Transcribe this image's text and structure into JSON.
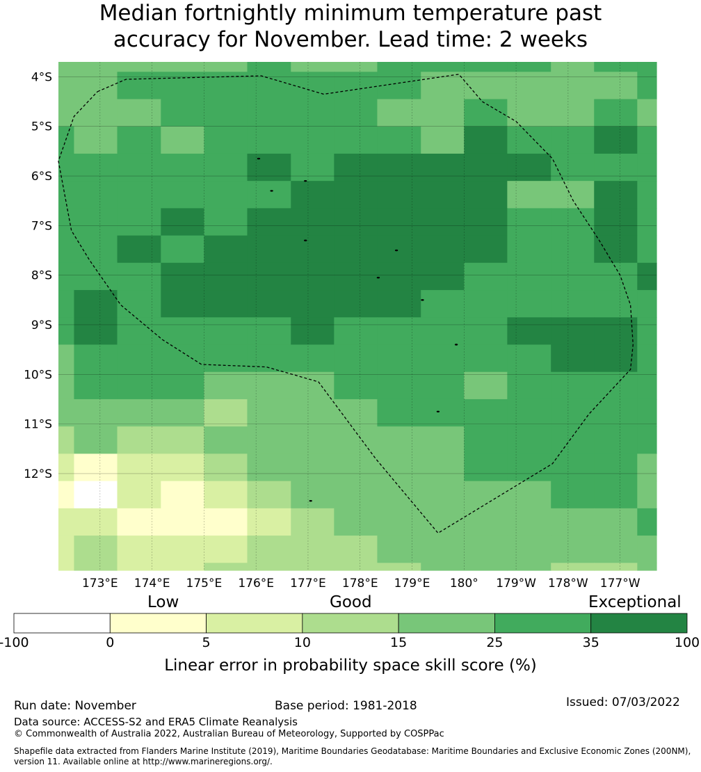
{
  "title": {
    "line1": "Median fortnightly minimum temperature past",
    "line2": "accuracy for November. Lead time: 2 weeks"
  },
  "map": {
    "lat_range": [
      -13.95,
      -3.7
    ],
    "lon_range": [
      172.2,
      183.7
    ],
    "lat_ticks": [
      {
        "label": "4°S",
        "value": -4
      },
      {
        "label": "5°S",
        "value": -5
      },
      {
        "label": "6°S",
        "value": -6
      },
      {
        "label": "7°S",
        "value": -7
      },
      {
        "label": "8°S",
        "value": -8
      },
      {
        "label": "9°S",
        "value": -9
      },
      {
        "label": "10°S",
        "value": -10
      },
      {
        "label": "11°S",
        "value": -11
      },
      {
        "label": "12°S",
        "value": -12
      }
    ],
    "lon_ticks": [
      {
        "label": "173°E",
        "value": 173
      },
      {
        "label": "174°E",
        "value": 174
      },
      {
        "label": "175°E",
        "value": 175
      },
      {
        "label": "176°E",
        "value": 176
      },
      {
        "label": "177°E",
        "value": 177
      },
      {
        "label": "178°E",
        "value": 178
      },
      {
        "label": "179°E",
        "value": 179
      },
      {
        "label": "180°",
        "value": 180
      },
      {
        "label": "179°W",
        "value": 181
      },
      {
        "label": "178°W",
        "value": 182
      },
      {
        "label": "177°W",
        "value": 183
      }
    ],
    "grid_note_levels": "cell values are colour-class indices 0..6 matching legend bins",
    "grid_lon_edges": [
      172.2,
      172.5,
      173.33,
      174.17,
      175.0,
      175.83,
      176.67,
      177.5,
      178.33,
      179.17,
      180.0,
      180.83,
      181.67,
      182.5,
      183.33,
      183.7
    ],
    "grid_lat_edges": [
      -3.7,
      -3.9,
      -4.45,
      -5.0,
      -5.55,
      -6.1,
      -6.65,
      -7.2,
      -7.75,
      -8.3,
      -8.85,
      -9.4,
      -9.95,
      -10.5,
      -11.05,
      -11.6,
      -12.15,
      -12.7,
      -13.25,
      -13.8,
      -13.95
    ],
    "grid": [
      [
        4,
        4,
        4,
        4,
        4,
        5,
        4,
        4,
        5,
        5,
        5,
        5,
        4,
        5,
        5
      ],
      [
        4,
        4,
        5,
        5,
        5,
        5,
        5,
        5,
        5,
        4,
        4,
        4,
        4,
        4,
        5
      ],
      [
        4,
        4,
        4,
        5,
        5,
        5,
        5,
        5,
        4,
        4,
        5,
        4,
        4,
        5,
        4
      ],
      [
        5,
        4,
        5,
        4,
        5,
        5,
        5,
        5,
        5,
        4,
        6,
        5,
        5,
        6,
        5
      ],
      [
        5,
        5,
        5,
        5,
        5,
        6,
        5,
        6,
        6,
        6,
        6,
        6,
        5,
        5,
        5
      ],
      [
        5,
        5,
        5,
        5,
        5,
        5,
        6,
        6,
        6,
        6,
        6,
        4,
        4,
        6,
        5
      ],
      [
        5,
        5,
        5,
        6,
        5,
        6,
        6,
        6,
        6,
        6,
        6,
        5,
        5,
        6,
        5
      ],
      [
        5,
        5,
        6,
        5,
        6,
        6,
        6,
        6,
        6,
        6,
        6,
        5,
        5,
        6,
        5
      ],
      [
        5,
        5,
        5,
        6,
        6,
        6,
        6,
        6,
        6,
        6,
        5,
        5,
        5,
        5,
        6
      ],
      [
        5,
        6,
        5,
        6,
        6,
        6,
        6,
        6,
        6,
        5,
        5,
        5,
        5,
        5,
        5
      ],
      [
        5,
        6,
        5,
        5,
        5,
        5,
        6,
        5,
        5,
        5,
        5,
        6,
        6,
        6,
        5
      ],
      [
        4,
        5,
        5,
        5,
        5,
        5,
        5,
        5,
        5,
        5,
        5,
        5,
        6,
        6,
        5
      ],
      [
        4,
        5,
        5,
        5,
        4,
        4,
        4,
        5,
        5,
        5,
        4,
        5,
        5,
        5,
        5
      ],
      [
        4,
        4,
        4,
        4,
        3,
        4,
        4,
        4,
        5,
        5,
        5,
        5,
        5,
        5,
        5
      ],
      [
        3,
        4,
        3,
        3,
        4,
        4,
        4,
        4,
        4,
        4,
        5,
        5,
        5,
        5,
        5
      ],
      [
        2,
        1,
        2,
        2,
        3,
        4,
        4,
        4,
        4,
        4,
        5,
        5,
        5,
        5,
        4
      ],
      [
        1,
        0,
        2,
        1,
        2,
        3,
        4,
        4,
        4,
        4,
        4,
        4,
        5,
        5,
        4
      ],
      [
        2,
        2,
        1,
        1,
        1,
        2,
        3,
        4,
        4,
        4,
        4,
        4,
        4,
        4,
        5
      ],
      [
        2,
        3,
        2,
        2,
        2,
        3,
        3,
        3,
        4,
        4,
        4,
        4,
        4,
        4,
        4
      ],
      [
        2,
        3,
        2,
        2,
        3,
        3,
        3,
        3,
        3,
        4,
        4,
        4,
        3,
        3,
        4
      ]
    ],
    "eez_boundary": [
      [
        172.95,
        -4.3
      ],
      [
        173.5,
        -4.05
      ],
      [
        176.1,
        -3.98
      ],
      [
        177.3,
        -4.35
      ],
      [
        179.9,
        -3.95
      ],
      [
        180.35,
        -4.5
      ],
      [
        181.0,
        -4.9
      ],
      [
        181.7,
        -5.65
      ],
      [
        182.1,
        -6.5
      ],
      [
        182.6,
        -7.3
      ],
      [
        183.0,
        -8.0
      ],
      [
        183.2,
        -8.6
      ],
      [
        183.25,
        -9.4
      ],
      [
        183.2,
        -9.9
      ],
      [
        182.4,
        -10.8
      ],
      [
        181.7,
        -11.8
      ],
      [
        179.5,
        -13.2
      ],
      [
        178.3,
        -11.7
      ],
      [
        177.2,
        -10.15
      ],
      [
        176.2,
        -9.85
      ],
      [
        174.95,
        -9.8
      ],
      [
        174.2,
        -9.3
      ],
      [
        173.4,
        -8.6
      ],
      [
        172.8,
        -7.7
      ],
      [
        172.45,
        -7.1
      ],
      [
        172.2,
        -5.7
      ],
      [
        172.5,
        -4.8
      ],
      [
        172.95,
        -4.3
      ]
    ],
    "islands": [
      [
        176.05,
        -5.65
      ],
      [
        176.3,
        -6.3
      ],
      [
        176.95,
        -6.1
      ],
      [
        176.95,
        -7.3
      ],
      [
        178.7,
        -7.5
      ],
      [
        178.35,
        -8.05
      ],
      [
        179.2,
        -8.5
      ],
      [
        179.85,
        -9.4
      ],
      [
        179.5,
        -10.75
      ],
      [
        177.05,
        -12.55
      ]
    ]
  },
  "legend": {
    "category_labels": [
      "Low",
      "Good",
      "Exceptional"
    ],
    "bins": [
      {
        "from": -100,
        "to": 0,
        "color": "#ffffff"
      },
      {
        "from": 0,
        "to": 5,
        "color": "#ffffcc"
      },
      {
        "from": 5,
        "to": 10,
        "color": "#d9f0a3"
      },
      {
        "from": 10,
        "to": 15,
        "color": "#addd8e"
      },
      {
        "from": 15,
        "to": 25,
        "color": "#78c679"
      },
      {
        "from": 25,
        "to": 35,
        "color": "#41ab5d"
      },
      {
        "from": 35,
        "to": 100,
        "color": "#238443"
      }
    ],
    "tick_labels": [
      "-100",
      "0",
      "5",
      "10",
      "15",
      "25",
      "35",
      "100"
    ],
    "title": "Linear error in probability space skill score (%)"
  },
  "footer": {
    "run_date": "Run date: November",
    "base_period": "Base period: 1981-2018",
    "issued": "Issued: 07/03/2022",
    "data_source": "Data source: ACCESS-S2 and ERA5 Climate Reanalysis",
    "copyright": "© Commonwealth of Australia 2022, Australian Bureau of Meteorology, Supported by COSPPac",
    "shapefile_line1": "Shapefile data extracted from Flanders Marine Institute (2019), Maritime Boundaries Geodatabase: Maritime Boundaries and Exclusive Economic Zones (200NM),",
    "shapefile_line2": "version 11. Available online at http://www.marineregions.org/."
  }
}
